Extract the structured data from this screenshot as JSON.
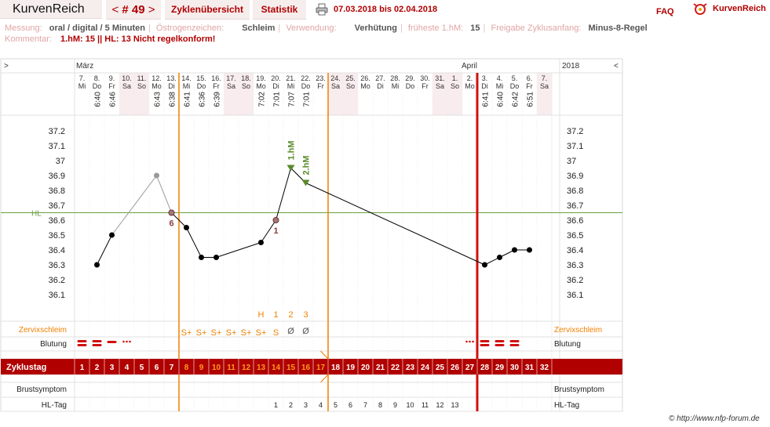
{
  "brand": "KurvenReich",
  "nav": {
    "prev": "<",
    "label": "# 49",
    "next": ">"
  },
  "tabs": {
    "zyklen": "Zyklenübersicht",
    "statistik": "Statistik"
  },
  "date_range": "07.03.2018 bis 02.04.2018",
  "faq": "FAQ",
  "logo": "KurvenReich",
  "info": {
    "messung_label": "Messung:",
    "messung": "oral / digital / 5 Minuten",
    "oestrogen_label": "Östrogenzeichen:",
    "oestrogen": "Schleim",
    "verwendung_label": "Verwendung:",
    "verwendung": "Verhütung",
    "frueheste_label": "früheste 1.hM:",
    "frueheste": "15",
    "freigabe_label": "Freigabe Zyklusanfang:",
    "freigabe": "Minus-8-Regel",
    "kommentar_label": "Kommentar:",
    "kommentar": "1.hM: 15 || HL: 13  Nicht regelkonform!"
  },
  "header": {
    "left_arrow": ">",
    "year": "2018",
    "right_arrow": "<",
    "month1": "März",
    "month2": "April"
  },
  "days": [
    {
      "d": "7.",
      "w": "Mi",
      "t": "",
      "we": false
    },
    {
      "d": "8.",
      "w": "Do",
      "t": "6:40",
      "we": false
    },
    {
      "d": "9.",
      "w": "Fr",
      "t": "6:46",
      "we": false
    },
    {
      "d": "10.",
      "w": "Sa",
      "t": "",
      "we": true
    },
    {
      "d": "11.",
      "w": "So",
      "t": "",
      "we": true
    },
    {
      "d": "12.",
      "w": "Mo",
      "t": "6:43",
      "we": false
    },
    {
      "d": "13.",
      "w": "Di",
      "t": "6:38",
      "we": false
    },
    {
      "d": "14.",
      "w": "Mi",
      "t": "6:41",
      "we": false
    },
    {
      "d": "15.",
      "w": "Do",
      "t": "6:36",
      "we": false
    },
    {
      "d": "16.",
      "w": "Fr",
      "t": "6:39",
      "we": false
    },
    {
      "d": "17.",
      "w": "Sa",
      "t": "",
      "we": true
    },
    {
      "d": "18.",
      "w": "So",
      "t": "",
      "we": true
    },
    {
      "d": "19.",
      "w": "Mo",
      "t": "7:02",
      "we": false
    },
    {
      "d": "20.",
      "w": "Di",
      "t": "7:01",
      "we": false
    },
    {
      "d": "21.",
      "w": "Mi",
      "t": "7:07",
      "we": false
    },
    {
      "d": "22.",
      "w": "Do",
      "t": "7:01",
      "we": false
    },
    {
      "d": "23.",
      "w": "Fr",
      "t": "",
      "we": false
    },
    {
      "d": "24.",
      "w": "Sa",
      "t": "",
      "we": true
    },
    {
      "d": "25.",
      "w": "So",
      "t": "",
      "we": true
    },
    {
      "d": "26.",
      "w": "Mo",
      "t": "",
      "we": false
    },
    {
      "d": "27.",
      "w": "Di",
      "t": "",
      "we": false
    },
    {
      "d": "28.",
      "w": "Mi",
      "t": "",
      "we": false
    },
    {
      "d": "29.",
      "w": "Do",
      "t": "",
      "we": false
    },
    {
      "d": "30.",
      "w": "Fr",
      "t": "",
      "we": false
    },
    {
      "d": "31.",
      "w": "Sa",
      "t": "",
      "we": true
    },
    {
      "d": "1.",
      "w": "So",
      "t": "",
      "we": true
    },
    {
      "d": "2.",
      "w": "Mo",
      "t": "",
      "we": false
    },
    {
      "d": "3.",
      "w": "Di",
      "t": "6:41",
      "we": false
    },
    {
      "d": "4.",
      "w": "Mi",
      "t": "6:40",
      "we": false
    },
    {
      "d": "5.",
      "w": "Do",
      "t": "6:42",
      "we": false
    },
    {
      "d": "6.",
      "w": "Fr",
      "t": "6:51",
      "we": false
    },
    {
      "d": "7.",
      "w": "Sa",
      "t": "",
      "we": true
    }
  ],
  "y_ticks": [
    "37.2",
    "37.1",
    "37",
    "36.9",
    "36.8",
    "36.7",
    "36.6",
    "36.5",
    "36.4",
    "36.3",
    "36.2",
    "36.1"
  ],
  "hl_label": "HL",
  "annotations": {
    "six": "6",
    "one": "1",
    "first_hm": "1.hM",
    "second_hm": "2.hM"
  },
  "rows": {
    "zervix": "Zervixschleim",
    "blutung": "Blutung",
    "zyklustag": "Zyklustag",
    "brust": "Brustsymptom",
    "hltag": "HL-Tag"
  },
  "zervix_top": [
    "",
    "",
    "",
    "",
    "",
    "",
    "",
    "",
    "",
    "",
    "",
    "",
    "H",
    "1",
    "2",
    "3"
  ],
  "zervix_values": [
    "",
    "",
    "",
    "",
    "",
    "",
    "",
    "S+",
    "S+",
    "S+",
    "S+",
    "S+",
    "S+",
    "S",
    "Ø",
    "Ø"
  ],
  "blutung": [
    "strong",
    "strong",
    "medium",
    "spot",
    "",
    "",
    "",
    "",
    "",
    "",
    "",
    "",
    "",
    "",
    "",
    "",
    "",
    "",
    "",
    "",
    "",
    "",
    "",
    "",
    "",
    "",
    "spot",
    "strong",
    "strong",
    "strong",
    "",
    ""
  ],
  "zyklustag": [
    "1",
    "2",
    "3",
    "4",
    "5",
    "6",
    "7",
    "8",
    "9",
    "10",
    "11",
    "12",
    "13",
    "14",
    "15",
    "16",
    "17",
    "18",
    "19",
    "20",
    "21",
    "22",
    "23",
    "24",
    "25",
    "26",
    "27",
    "28",
    "29",
    "30",
    "31",
    "32"
  ],
  "hltag": [
    "",
    "",
    "",
    "",
    "",
    "",
    "",
    "",
    "",
    "",
    "",
    "",
    "",
    "1",
    "2",
    "3",
    "4",
    "5",
    "6",
    "7",
    "8",
    "9",
    "10",
    "11",
    "12",
    "13",
    "",
    "",
    "",
    "",
    "",
    ""
  ],
  "copyright": "© http://www.nfp-forum.de",
  "colors": {
    "accent": "#b00000",
    "orange": "#f08000",
    "green": "#5a8a2a",
    "hl_line": "#6aa040",
    "weekend": "#f8ecee"
  },
  "chart_data": {
    "type": "line",
    "ylim": [
      36.0,
      37.3
    ],
    "hl": 36.65,
    "series": [
      {
        "name": "",
        "points": [
          {
            "day": 2,
            "y": 36.3,
            "kind": "normal"
          },
          {
            "day": 3,
            "y": 36.5,
            "kind": "normal"
          },
          {
            "day": 6,
            "y": 36.9,
            "kind": "excluded"
          },
          {
            "day": 7,
            "y": 36.65,
            "kind": "marked"
          },
          {
            "day": 8,
            "y": 36.55,
            "kind": "normal"
          },
          {
            "day": 9,
            "y": 36.35,
            "kind": "normal"
          },
          {
            "day": 10,
            "y": 36.35,
            "kind": "normal"
          },
          {
            "day": 13,
            "y": 36.45,
            "kind": "normal"
          },
          {
            "day": 14,
            "y": 36.6,
            "kind": "marked"
          },
          {
            "day": 15,
            "y": 36.95,
            "kind": "hm"
          },
          {
            "day": 16,
            "y": 36.85,
            "kind": "hm"
          },
          {
            "day": 28,
            "y": 36.3,
            "kind": "normal"
          },
          {
            "day": 29,
            "y": 36.35,
            "kind": "normal"
          },
          {
            "day": 30,
            "y": 36.4,
            "kind": "normal"
          },
          {
            "day": 31,
            "y": 36.4,
            "kind": "normal"
          }
        ]
      }
    ]
  }
}
